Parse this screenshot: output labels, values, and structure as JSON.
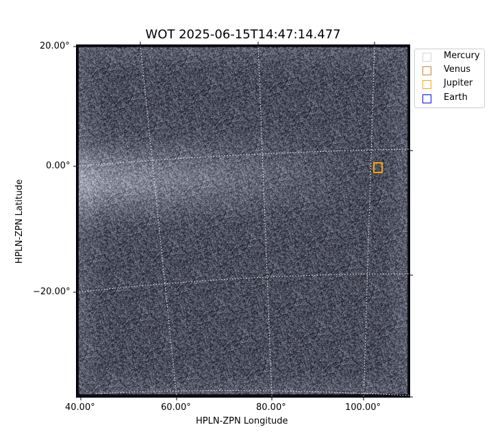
{
  "chart_data": {
    "type": "heatmap",
    "title": "WOT 2025-06-15T14:47:14.477",
    "xlabel": "HPLN-ZPN Longitude",
    "ylabel": "HPLN-ZPN Latitude",
    "xticks": [
      "40.00°",
      "60.00°",
      "80.00°",
      "100.00°"
    ],
    "yticks": [
      "20.00°",
      "0.00°",
      "−20.00°"
    ],
    "colormap": "bone-like grayscale",
    "grid": true,
    "legend_position": "upper-right outside",
    "legend": [
      {
        "name": "Mercury",
        "color": "#d3d3d3"
      },
      {
        "name": "Venus",
        "color": "#cd7f32"
      },
      {
        "name": "Jupiter",
        "color": "#ffa500"
      },
      {
        "name": "Earth",
        "color": "#0000ff"
      }
    ],
    "markers": [
      {
        "name": "Jupiter",
        "lon": 103,
        "lat": 0
      }
    ]
  }
}
